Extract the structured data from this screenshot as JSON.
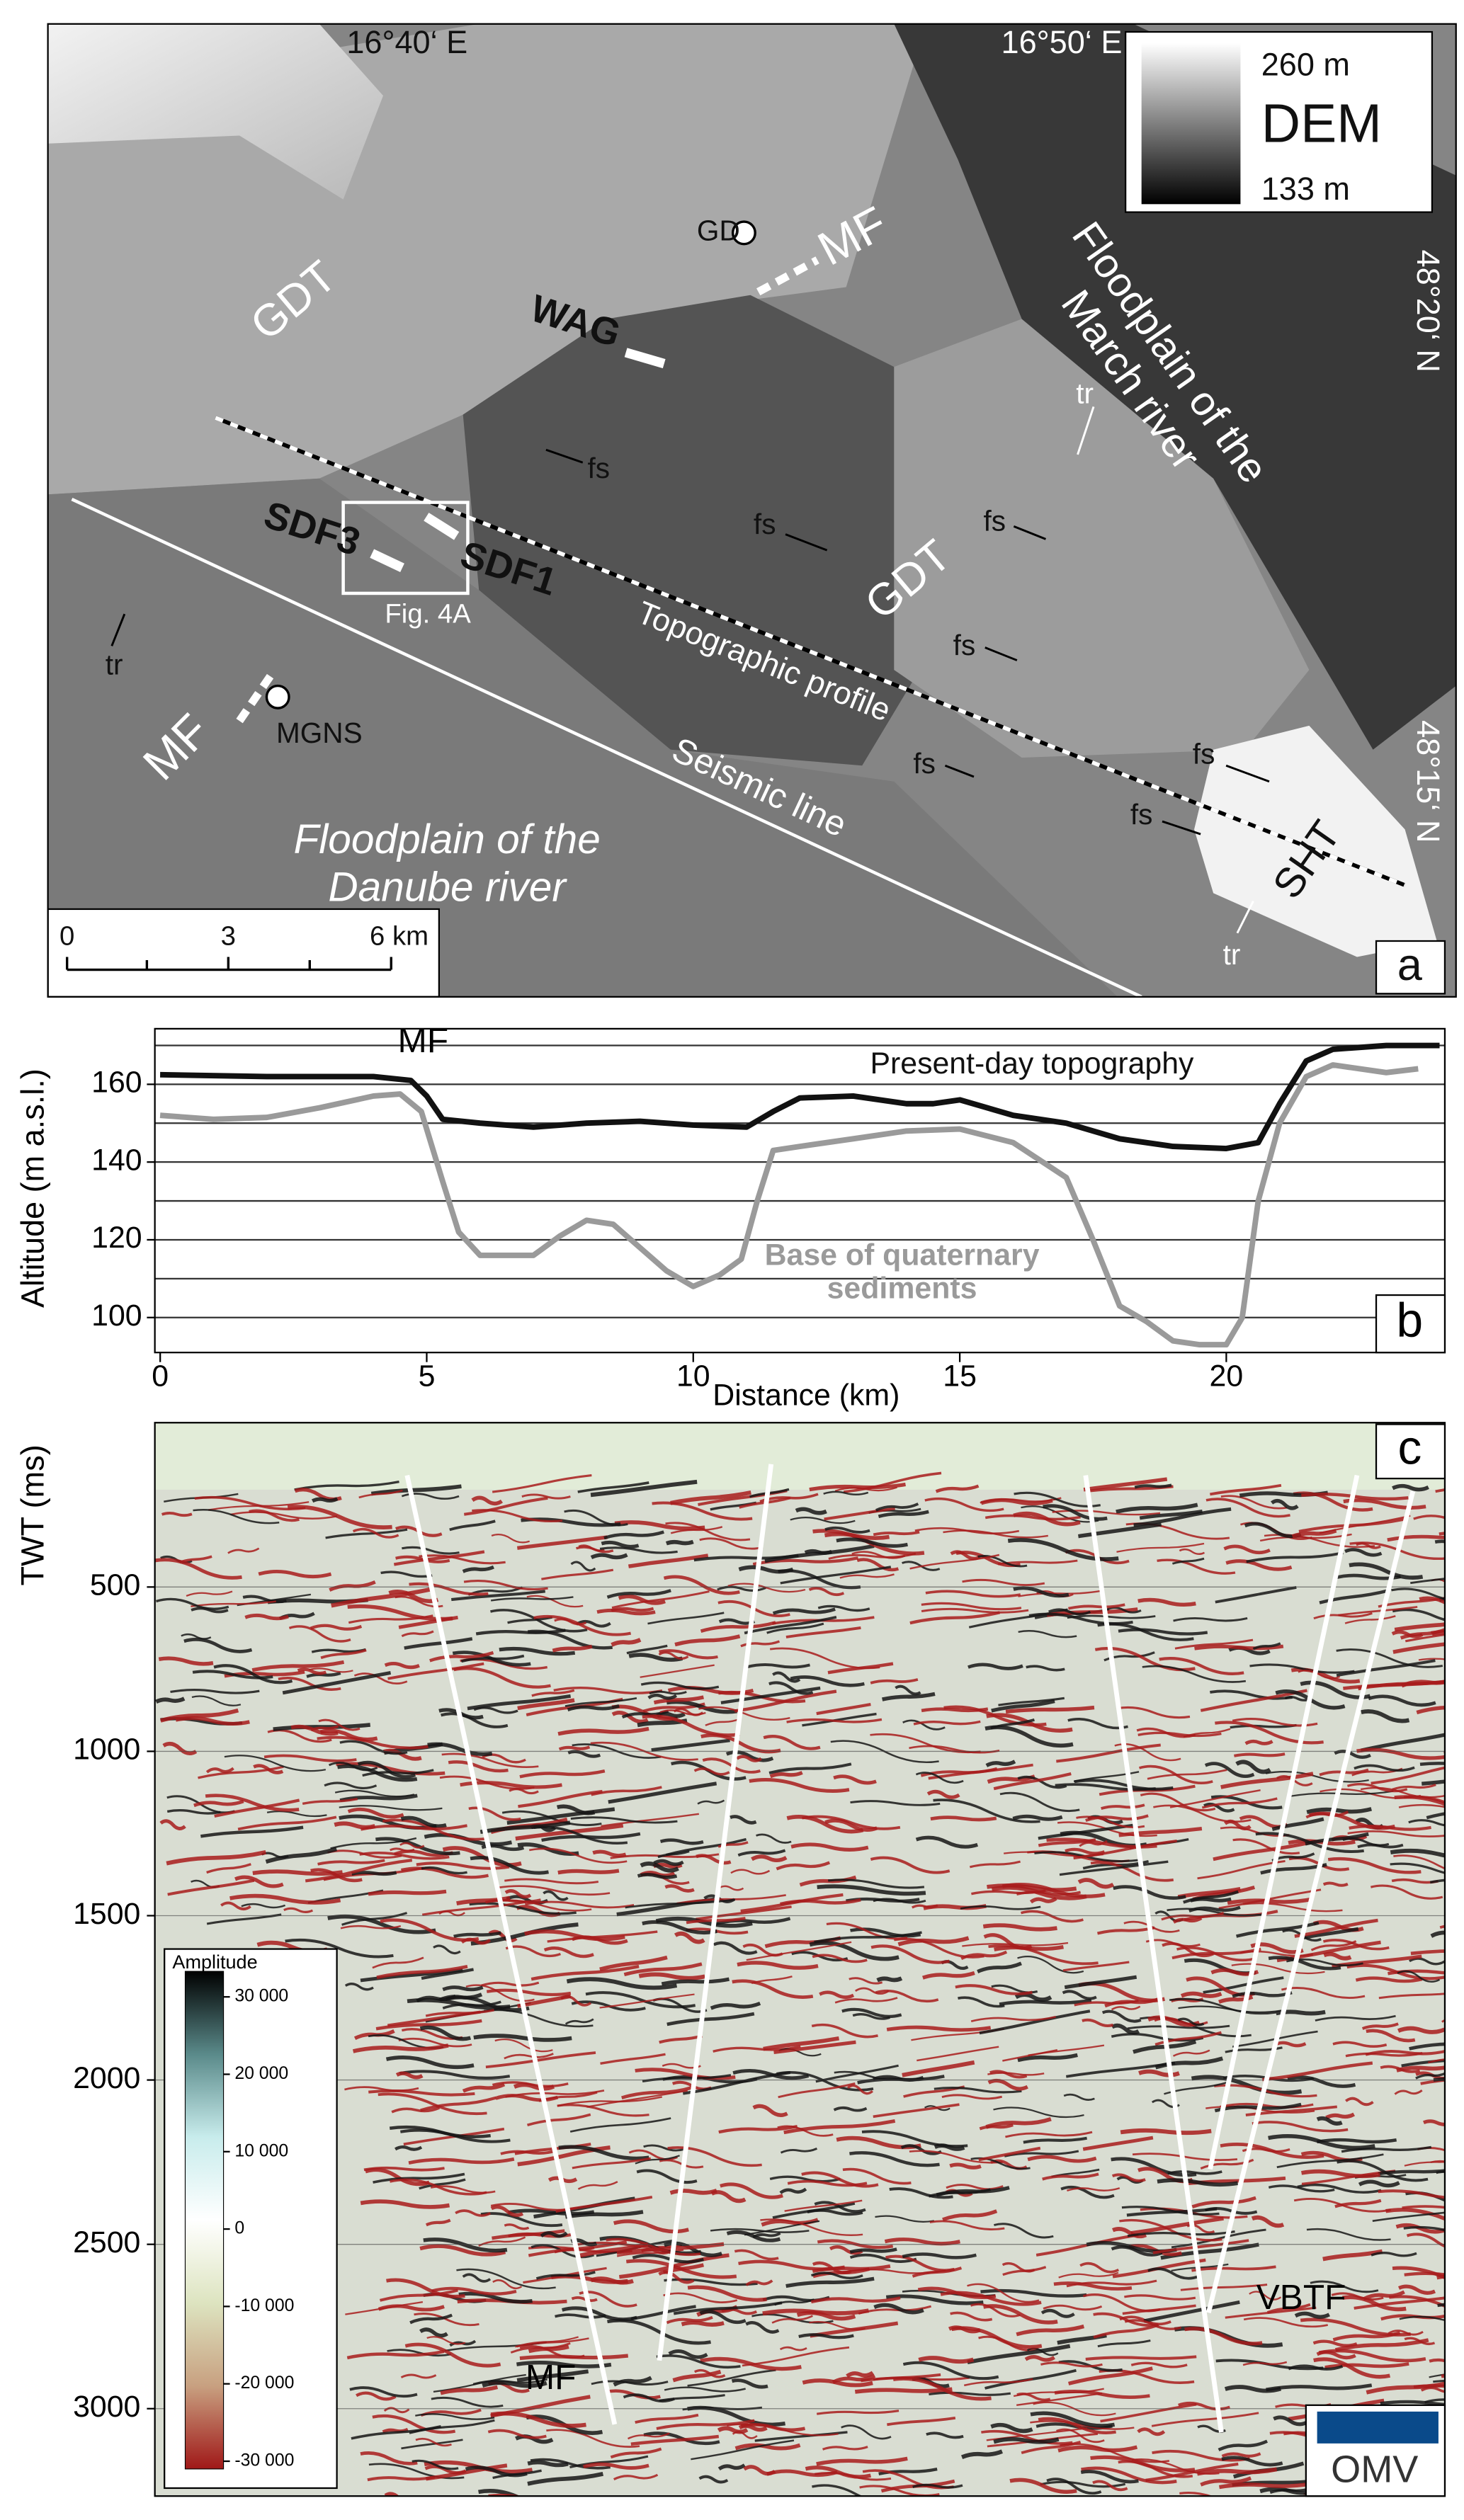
{
  "map": {
    "lon_1": "16°40‘ E",
    "lon_2": "16°50‘ E",
    "lat_1": "48°20‘ N",
    "lat_2": "48°15‘ N",
    "dem_title": "DEM",
    "dem_max": "260 m",
    "dem_min": "133 m",
    "gd": "GD",
    "mf_1": "MF",
    "mf_2": "MF",
    "gdt_1": "GDT",
    "gdt_2": "GDT",
    "wag": "WAG",
    "march": "Floodplain of the March river",
    "danube": "Floodplain of the Danube river",
    "tr_1": "tr",
    "tr_2": "tr",
    "tr_3": "tr",
    "fs_1": "fs",
    "fs_2": "fs",
    "fs_3": "fs",
    "fs_4": "fs",
    "fs_5": "fs",
    "fs_6": "fs",
    "fs_7": "fs",
    "sdf3": "SDF3",
    "sdf1": "SDF1",
    "fig_ref": "Fig. 4A",
    "topo_profile": "Topographic profile",
    "mgns": "MGNS",
    "seismic_line": "Seismic line",
    "sht": "SHT",
    "scale_0": "0",
    "scale_3": "3",
    "scale_6": "6 km",
    "panel": "a"
  },
  "chart_data": [
    {
      "type": "line",
      "panel": "b",
      "ylabel": "Altitude (m a.s.l.)",
      "xlabel": "Distance (km)",
      "annotation": "MF",
      "xlim": [
        -0.1,
        24.1
      ],
      "xticks": [
        0,
        5,
        10,
        15,
        20
      ],
      "ylim": [
        91,
        174.3
      ],
      "yticks": [
        100,
        120,
        140,
        160
      ],
      "minor_yticks": [
        110,
        130,
        150,
        170
      ],
      "grid": true,
      "series": [
        {
          "name": "Present-day topography",
          "color": "#111111",
          "x": [
            0,
            2,
            4,
            4.7,
            5,
            5.3,
            6,
            7,
            8,
            9,
            10,
            11,
            11.5,
            12,
            13,
            14,
            14.5,
            15,
            16,
            17,
            18,
            19,
            20,
            20.6,
            21,
            21.5,
            22,
            23,
            24
          ],
          "values": [
            162.5,
            162,
            162,
            161,
            157,
            151,
            150,
            149,
            150,
            150.5,
            149.5,
            149,
            153,
            156.5,
            157,
            155,
            155,
            156,
            152,
            150,
            146,
            144,
            143.5,
            145,
            155,
            166,
            169,
            170,
            170
          ]
        },
        {
          "name": "Base of quaternary sediments",
          "color": "#9a9a9a",
          "x": [
            0,
            1,
            2,
            3,
            4,
            4.5,
            4.9,
            5.3,
            5.6,
            6,
            7,
            7.5,
            8,
            8.5,
            9,
            9.5,
            10,
            10.5,
            10.9,
            11.2,
            11.5,
            12,
            13,
            14,
            15,
            16,
            17,
            17.5,
            18,
            18.5,
            19,
            19.5,
            20,
            20.3,
            20.6,
            21,
            21.5,
            22,
            23,
            23.6
          ],
          "values": [
            152,
            151,
            151.5,
            154,
            157,
            157.5,
            153,
            135,
            122,
            116,
            116,
            121,
            125,
            124,
            118,
            112,
            108,
            111,
            115,
            130,
            143,
            144,
            146,
            148,
            148.5,
            145,
            136,
            120,
            103,
            99,
            94,
            93,
            93,
            100,
            130,
            150,
            162,
            165,
            163,
            164
          ]
        }
      ]
    },
    {
      "type": "seismic",
      "panel": "c",
      "ylabel": "TWT (ms)",
      "ylim": [
        0,
        3266
      ],
      "yticks": [
        500,
        1000,
        1500,
        2000,
        2500,
        3000
      ],
      "annotations": [
        "MF",
        "VBTF"
      ],
      "logo": "OMV",
      "colorbar": {
        "title": "Amplitude",
        "clim": [
          -31000,
          33300
        ],
        "colors": [
          "#a01818",
          "#c8a080",
          "#dde4c0",
          "#ffffff",
          "#c8ecec",
          "#5a8a8a",
          "#000000"
        ],
        "ticks": [
          {
            "value": 30000,
            "label": "30 000"
          },
          {
            "value": 20000,
            "label": "20 000"
          },
          {
            "value": 10000,
            "label": "10 000"
          },
          0,
          {
            "value": -10000,
            "label": "-10 000"
          },
          {
            "value": -20000,
            "label": "-20 000"
          },
          {
            "value": -30000,
            "label": "-30 000"
          }
        ]
      }
    }
  ]
}
